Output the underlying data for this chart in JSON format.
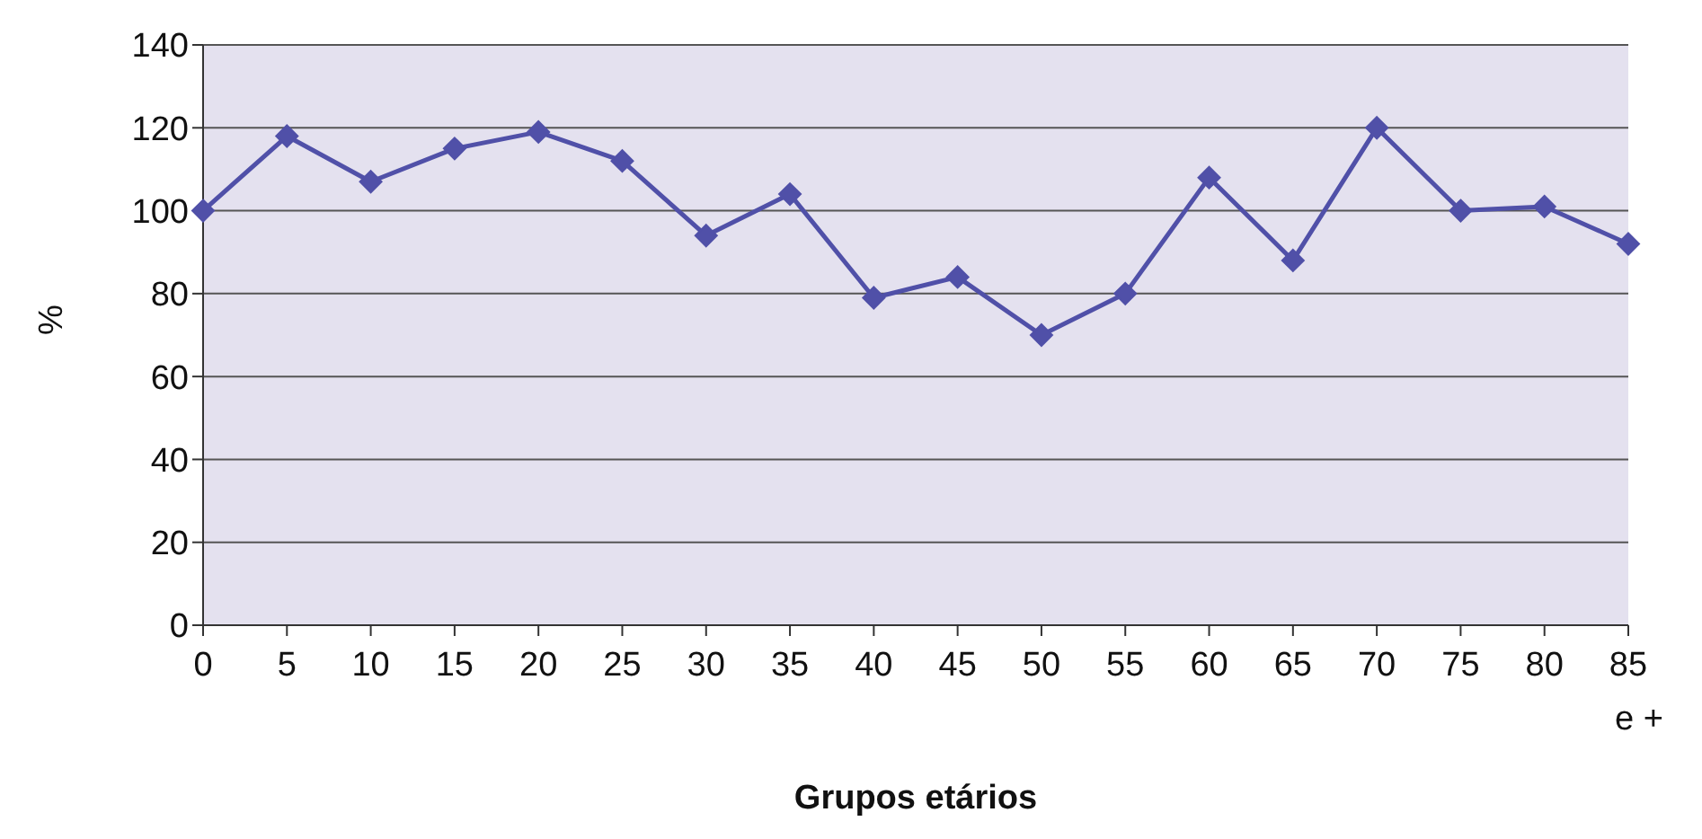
{
  "chart_data": {
    "type": "line",
    "xlabel": "Grupos etários",
    "ylabel": "%",
    "categories": [
      "0",
      "5",
      "10",
      "15",
      "20",
      "25",
      "30",
      "35",
      "40",
      "45",
      "50",
      "55",
      "60",
      "65",
      "70",
      "75",
      "80",
      "85 e +"
    ],
    "series": [
      {
        "color": "#5050a8",
        "values": [
          100,
          118,
          107,
          115,
          119,
          112,
          94,
          104,
          79,
          84,
          70,
          80,
          108,
          88,
          120,
          100,
          101,
          92
        ]
      }
    ],
    "ylim": [
      0,
      140
    ],
    "yticks": [
      0,
      20,
      40,
      60,
      80,
      100,
      120,
      140
    ],
    "grid": "y",
    "marker": "diamond",
    "legend": false
  }
}
